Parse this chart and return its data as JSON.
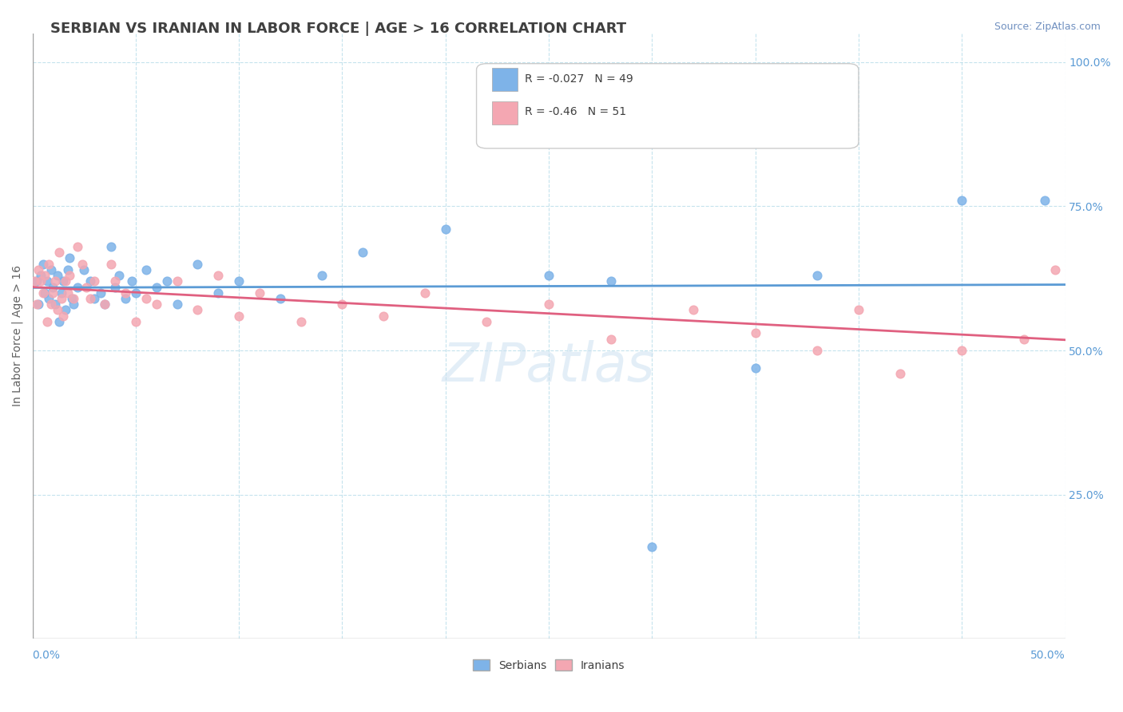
{
  "title": "SERBIAN VS IRANIAN IN LABOR FORCE | AGE > 16 CORRELATION CHART",
  "source_text": "Source: ZipAtlas.com",
  "ylabel": "In Labor Force | Age > 16",
  "x_range": [
    0.0,
    0.5
  ],
  "y_range": [
    0.0,
    1.05
  ],
  "serbian_color": "#7EB3E8",
  "iranian_color": "#F4A7B2",
  "serbian_line_color": "#5B9BD5",
  "iranian_line_color": "#E06080",
  "serbian_R": -0.027,
  "iranian_R": -0.46,
  "serbian_N": 49,
  "iranian_N": 51,
  "serbian_dots": [
    [
      0.002,
      0.62
    ],
    [
      0.003,
      0.58
    ],
    [
      0.004,
      0.63
    ],
    [
      0.005,
      0.65
    ],
    [
      0.006,
      0.6
    ],
    [
      0.007,
      0.62
    ],
    [
      0.008,
      0.59
    ],
    [
      0.009,
      0.64
    ],
    [
      0.01,
      0.61
    ],
    [
      0.011,
      0.58
    ],
    [
      0.012,
      0.63
    ],
    [
      0.013,
      0.55
    ],
    [
      0.014,
      0.6
    ],
    [
      0.015,
      0.62
    ],
    [
      0.016,
      0.57
    ],
    [
      0.017,
      0.64
    ],
    [
      0.018,
      0.66
    ],
    [
      0.019,
      0.59
    ],
    [
      0.02,
      0.58
    ],
    [
      0.022,
      0.61
    ],
    [
      0.025,
      0.64
    ],
    [
      0.028,
      0.62
    ],
    [
      0.03,
      0.59
    ],
    [
      0.033,
      0.6
    ],
    [
      0.035,
      0.58
    ],
    [
      0.038,
      0.68
    ],
    [
      0.04,
      0.61
    ],
    [
      0.042,
      0.63
    ],
    [
      0.045,
      0.59
    ],
    [
      0.048,
      0.62
    ],
    [
      0.05,
      0.6
    ],
    [
      0.055,
      0.64
    ],
    [
      0.06,
      0.61
    ],
    [
      0.065,
      0.62
    ],
    [
      0.07,
      0.58
    ],
    [
      0.08,
      0.65
    ],
    [
      0.09,
      0.6
    ],
    [
      0.1,
      0.62
    ],
    [
      0.12,
      0.59
    ],
    [
      0.14,
      0.63
    ],
    [
      0.16,
      0.67
    ],
    [
      0.2,
      0.71
    ],
    [
      0.25,
      0.63
    ],
    [
      0.3,
      0.16
    ],
    [
      0.28,
      0.62
    ],
    [
      0.35,
      0.47
    ],
    [
      0.38,
      0.63
    ],
    [
      0.45,
      0.76
    ],
    [
      0.49,
      0.76
    ]
  ],
  "iranian_dots": [
    [
      0.001,
      0.62
    ],
    [
      0.002,
      0.58
    ],
    [
      0.003,
      0.64
    ],
    [
      0.004,
      0.62
    ],
    [
      0.005,
      0.6
    ],
    [
      0.006,
      0.63
    ],
    [
      0.007,
      0.55
    ],
    [
      0.008,
      0.65
    ],
    [
      0.009,
      0.58
    ],
    [
      0.01,
      0.6
    ],
    [
      0.011,
      0.62
    ],
    [
      0.012,
      0.57
    ],
    [
      0.013,
      0.67
    ],
    [
      0.014,
      0.59
    ],
    [
      0.015,
      0.56
    ],
    [
      0.016,
      0.62
    ],
    [
      0.017,
      0.6
    ],
    [
      0.018,
      0.63
    ],
    [
      0.02,
      0.59
    ],
    [
      0.022,
      0.68
    ],
    [
      0.024,
      0.65
    ],
    [
      0.026,
      0.61
    ],
    [
      0.028,
      0.59
    ],
    [
      0.03,
      0.62
    ],
    [
      0.035,
      0.58
    ],
    [
      0.038,
      0.65
    ],
    [
      0.04,
      0.62
    ],
    [
      0.045,
      0.6
    ],
    [
      0.05,
      0.55
    ],
    [
      0.055,
      0.59
    ],
    [
      0.06,
      0.58
    ],
    [
      0.07,
      0.62
    ],
    [
      0.08,
      0.57
    ],
    [
      0.09,
      0.63
    ],
    [
      0.1,
      0.56
    ],
    [
      0.11,
      0.6
    ],
    [
      0.13,
      0.55
    ],
    [
      0.15,
      0.58
    ],
    [
      0.17,
      0.56
    ],
    [
      0.19,
      0.6
    ],
    [
      0.22,
      0.55
    ],
    [
      0.25,
      0.58
    ],
    [
      0.28,
      0.52
    ],
    [
      0.32,
      0.57
    ],
    [
      0.35,
      0.53
    ],
    [
      0.38,
      0.5
    ],
    [
      0.4,
      0.57
    ],
    [
      0.42,
      0.46
    ],
    [
      0.45,
      0.5
    ],
    [
      0.48,
      0.52
    ],
    [
      0.495,
      0.64
    ]
  ]
}
